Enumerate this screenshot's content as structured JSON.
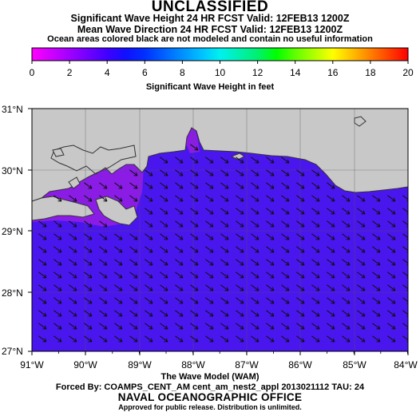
{
  "header": {
    "classification": "UNCLASSIFIED",
    "line1": "Significant Wave Height 24 HR FCST Valid: 12FEB13 1200Z",
    "line2": "Mean Wave Direction 24 HR FCST Valid: 12FEB13 1200Z",
    "note": "Ocean areas colored black are not modeled and contain no useful information"
  },
  "colorbar": {
    "title": "Significant Wave Height in feet",
    "tick_labels": [
      "0",
      "2",
      "4",
      "6",
      "8",
      "10",
      "12",
      "14",
      "16",
      "18",
      "20"
    ],
    "colors": [
      "#ff00ff",
      "#d000ff",
      "#a000ff",
      "#7000ff",
      "#4000ff",
      "#1010ff",
      "#0030ff",
      "#0060ff",
      "#0090ff",
      "#00c0ff",
      "#00f0f0",
      "#00f0b0",
      "#00f070",
      "#00ff00",
      "#60ff00",
      "#b0ff00",
      "#ffff00",
      "#ffc000",
      "#ff8000",
      "#ff4000",
      "#ff0000"
    ]
  },
  "map": {
    "lat_labels": [
      "31°N",
      "30°N",
      "29°N",
      "28°N",
      "27°N"
    ],
    "lon_labels": [
      "91°W",
      "90°W",
      "89°W",
      "88°W",
      "87°W",
      "86°W",
      "85°W",
      "84°W"
    ],
    "colors": {
      "land": "#c8c8c8",
      "ocean": "#4a16ee",
      "shallow": "#8a1ce6",
      "coast": "#333333",
      "arrow": "#111111"
    },
    "wave_direction": "northwest-to-southeast"
  },
  "footer": {
    "model_name": "The Wave Model (WAM)",
    "forced_by": "Forced By: COAMPS_CENT_AM cent_am_nest2_appl 2013021112 TAU: 24",
    "office": "NAVAL OCEANOGRAPHIC OFFICE",
    "approved": "Approved for public release. Distribution is unlimited."
  }
}
